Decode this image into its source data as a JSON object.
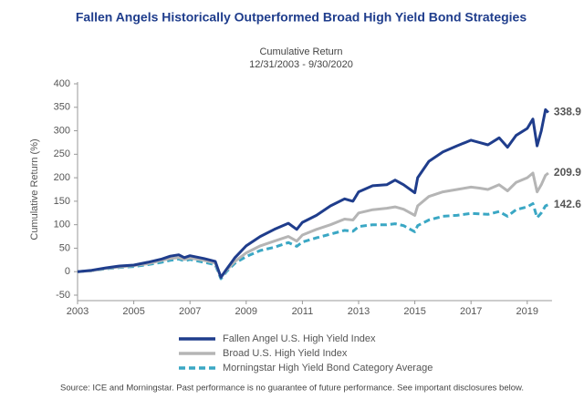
{
  "chart_data": {
    "type": "line",
    "title": "Fallen Angels Historically Outperformed Broad High Yield Bond Strategies",
    "subtitle": [
      "Cumulative Return",
      "12/31/2003 - 9/30/2020"
    ],
    "y_label": "Cumulative Return (%)",
    "source": "Source: ICE and Morningstar. Past performance is no guarantee of future performance. See important disclosures below.",
    "xlim": [
      2003,
      2019.75
    ],
    "xticks": [
      2003,
      2005,
      2007,
      2009,
      2011,
      2013,
      2015,
      2017,
      2019
    ],
    "ylim": [
      -50,
      400
    ],
    "yticks": [
      -50,
      0,
      50,
      100,
      150,
      200,
      250,
      300,
      350,
      400
    ],
    "x": [
      2003,
      2003.5,
      2004,
      2004.5,
      2005,
      2005.5,
      2006,
      2006.3,
      2006.6,
      2006.8,
      2007,
      2007.5,
      2007.9,
      2008.1,
      2008.3,
      2008.6,
      2009,
      2009.5,
      2010,
      2010.5,
      2010.8,
      2011,
      2011.5,
      2012,
      2012.5,
      2012.8,
      2013,
      2013.5,
      2014,
      2014.3,
      2014.6,
      2015,
      2015.1,
      2015.5,
      2016,
      2016.5,
      2017,
      2017.3,
      2017.6,
      2018,
      2018.3,
      2018.6,
      2019,
      2019.2,
      2019.35,
      2019.5,
      2019.65,
      2019.75
    ],
    "series": [
      {
        "name": "Fallen Angel U.S. High Yield Index",
        "color": "#1f3d8c",
        "dashed": false,
        "values": [
          0,
          3,
          8,
          12,
          14,
          20,
          27,
          33,
          36,
          30,
          34,
          28,
          22,
          -12,
          5,
          30,
          55,
          75,
          90,
          103,
          90,
          105,
          120,
          140,
          155,
          150,
          170,
          183,
          185,
          195,
          185,
          168,
          200,
          235,
          255,
          268,
          280,
          275,
          270,
          285,
          265,
          290,
          305,
          325,
          268,
          300,
          345,
          338.9
        ]
      },
      {
        "name": "Broad U.S. High Yield Index",
        "color": "#b5b5b5",
        "dashed": false,
        "values": [
          0,
          2,
          7,
          10,
          13,
          17,
          24,
          28,
          30,
          26,
          29,
          24,
          18,
          -12,
          3,
          22,
          40,
          55,
          65,
          75,
          65,
          78,
          90,
          100,
          112,
          110,
          125,
          132,
          135,
          138,
          133,
          120,
          140,
          160,
          170,
          175,
          180,
          178,
          175,
          185,
          172,
          190,
          200,
          210,
          170,
          185,
          205,
          209.9
        ]
      },
      {
        "name": "Morningstar High Yield Bond Category Average",
        "color": "#3aa7c4",
        "dashed": true,
        "values": [
          0,
          2,
          6,
          9,
          11,
          15,
          20,
          24,
          27,
          23,
          26,
          20,
          15,
          -15,
          0,
          18,
          32,
          45,
          52,
          62,
          54,
          63,
          72,
          80,
          88,
          86,
          96,
          100,
          100,
          102,
          98,
          85,
          98,
          110,
          118,
          120,
          124,
          123,
          122,
          128,
          118,
          132,
          138,
          145,
          115,
          125,
          140,
          142.6
        ]
      }
    ]
  }
}
